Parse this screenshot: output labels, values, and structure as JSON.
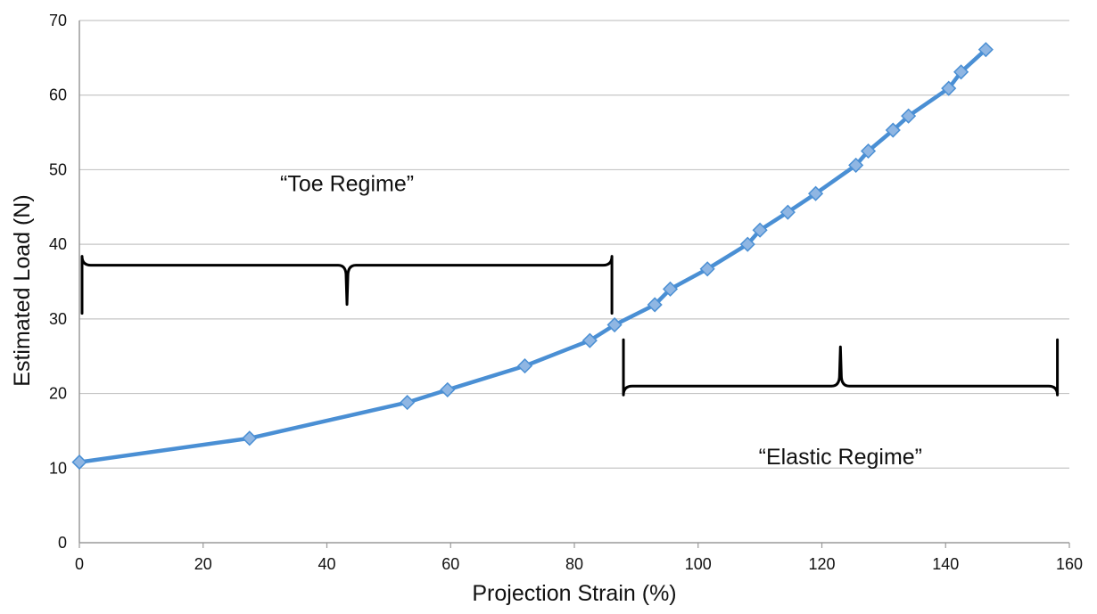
{
  "chart_data": {
    "type": "line",
    "title": "",
    "xlabel": "Projection Strain (%)",
    "ylabel": "Estimated Load (N)",
    "xlim": [
      0,
      160
    ],
    "ylim": [
      0,
      70
    ],
    "x_ticks": [
      "0",
      "20",
      "40",
      "60",
      "80",
      "100",
      "120",
      "140",
      "160"
    ],
    "y_ticks": [
      "0",
      "10",
      "20",
      "30",
      "40",
      "50",
      "60",
      "70"
    ],
    "grid": "horizontal",
    "legend": "none",
    "series": [
      {
        "color": "#4a8fd4",
        "marker": "diamond",
        "marker_color": "#8fb6e3",
        "points": [
          {
            "x": 0,
            "y": 10.8
          },
          {
            "x": 27.5,
            "y": 14.0
          },
          {
            "x": 53,
            "y": 18.8
          },
          {
            "x": 59.5,
            "y": 20.5
          },
          {
            "x": 72,
            "y": 23.7
          },
          {
            "x": 82.5,
            "y": 27.1
          },
          {
            "x": 86.5,
            "y": 29.2
          },
          {
            "x": 93,
            "y": 31.9
          },
          {
            "x": 95.5,
            "y": 34.0
          },
          {
            "x": 101.5,
            "y": 36.7
          },
          {
            "x": 108,
            "y": 40.0
          },
          {
            "x": 110,
            "y": 41.9
          },
          {
            "x": 114.5,
            "y": 44.3
          },
          {
            "x": 119,
            "y": 46.8
          },
          {
            "x": 125.5,
            "y": 50.6
          },
          {
            "x": 127.5,
            "y": 52.5
          },
          {
            "x": 131.5,
            "y": 55.3
          },
          {
            "x": 134,
            "y": 57.2
          },
          {
            "x": 140.5,
            "y": 60.9
          },
          {
            "x": 142.5,
            "y": 63.1
          },
          {
            "x": 146.5,
            "y": 66.1
          }
        ]
      }
    ],
    "annotations": [
      {
        "label": "“Toe Regime”",
        "x_range": [
          0,
          86.5
        ],
        "y": 37.2,
        "brace_opens": "down"
      },
      {
        "label": "“Elastic Regime”",
        "x_range": [
          87.5,
          158.5
        ],
        "y": 21.0,
        "brace_opens": "up"
      }
    ]
  }
}
